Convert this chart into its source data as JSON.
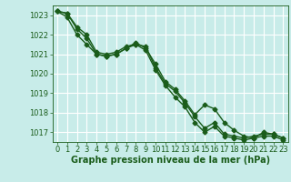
{
  "background_color": "#c8ece9",
  "grid_color": "#b8d8d5",
  "line_color": "#1a5c1a",
  "marker_style": "D",
  "marker_size": 2.5,
  "line_width": 1.0,
  "xlabel": "Graphe pression niveau de la mer (hPa)",
  "xlabel_fontsize": 7,
  "tick_fontsize": 6,
  "ylim": [
    1016.5,
    1023.5
  ],
  "xlim": [
    -0.5,
    23.5
  ],
  "yticks": [
    1017,
    1018,
    1019,
    1020,
    1021,
    1022,
    1023
  ],
  "xticks": [
    0,
    1,
    2,
    3,
    4,
    5,
    6,
    7,
    8,
    9,
    10,
    11,
    12,
    13,
    14,
    15,
    16,
    17,
    18,
    19,
    20,
    21,
    22,
    23
  ],
  "series": [
    [
      1023.2,
      1023.1,
      1022.4,
      1022.0,
      1021.1,
      1021.0,
      1021.1,
      1021.4,
      1021.5,
      1021.4,
      1020.3,
      1019.5,
      1019.1,
      1018.5,
      1017.8,
      1017.2,
      1017.5,
      1016.9,
      1016.8,
      1016.7,
      1016.8,
      1016.9,
      1016.9,
      1016.7
    ],
    [
      1023.2,
      1023.1,
      1022.3,
      1021.8,
      1021.0,
      1020.9,
      1021.0,
      1021.3,
      1021.5,
      1021.2,
      1020.2,
      1019.4,
      1018.8,
      1018.3,
      1017.5,
      1017.0,
      1017.3,
      1016.8,
      1016.7,
      1016.6,
      1016.7,
      1016.8,
      1016.8,
      1016.6
    ],
    [
      1023.2,
      1022.9,
      1022.0,
      1021.5,
      1021.0,
      1020.9,
      1021.0,
      1021.3,
      1021.6,
      1021.3,
      1020.5,
      1019.6,
      1019.2,
      1018.6,
      1017.9,
      1018.4,
      1018.2,
      1017.5,
      1017.1,
      1016.8,
      1016.7,
      1017.0,
      1016.9,
      1016.7
    ]
  ]
}
